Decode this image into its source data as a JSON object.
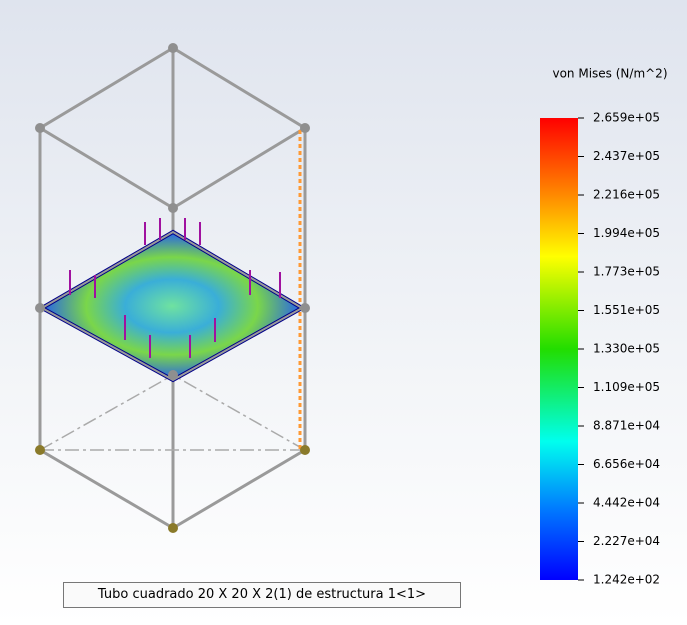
{
  "legend": {
    "title": "von Mises (N/m^2)",
    "labels": [
      "2.659e+05",
      "2.437e+05",
      "2.216e+05",
      "1.994e+05",
      "1.773e+05",
      "1.551e+05",
      "1.330e+05",
      "1.109e+05",
      "8.871e+04",
      "6.656e+04",
      "4.442e+04",
      "2.227e+04",
      "1.242e+02"
    ]
  },
  "tooltip": "Tubo cuadrado 20 X 20 X 2(1) de estructura 1<1>"
}
